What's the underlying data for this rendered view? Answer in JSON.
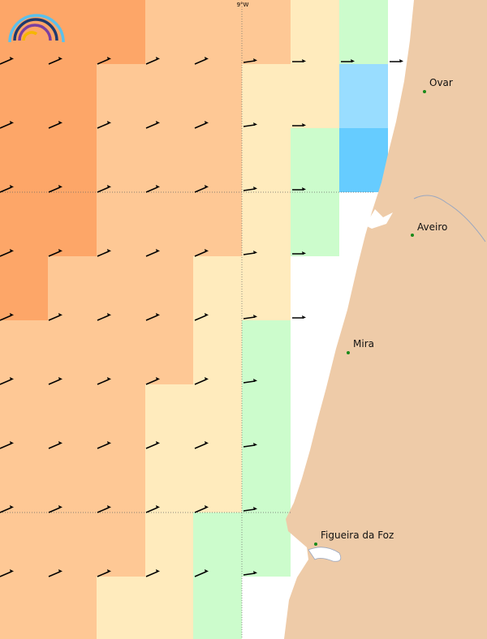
{
  "map": {
    "longitude_label": "9°W",
    "places": [
      "Ovar",
      "Aveiro",
      "Mira",
      "Figueira da Foz"
    ]
  }
}
